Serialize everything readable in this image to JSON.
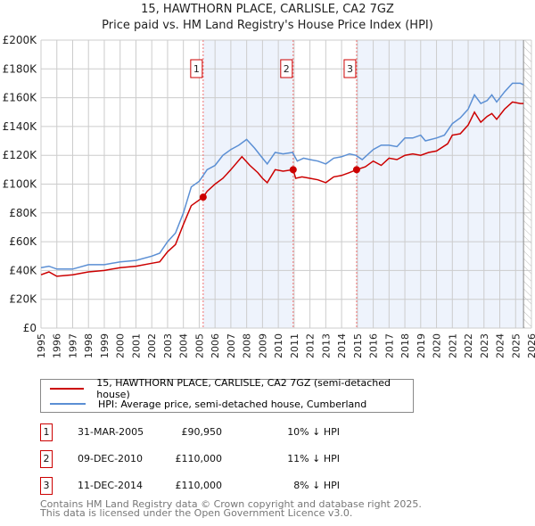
{
  "chart_data": {
    "type": "line",
    "title": "15, HAWTHORN PLACE, CARLISLE, CA2 7GZ",
    "subtitle": "Price paid vs. HM Land Registry's House Price Index (HPI)",
    "xlim": [
      1995,
      2026
    ],
    "ylim": [
      0,
      200000
    ],
    "yticks": [
      {
        "v": 0,
        "label": "£0"
      },
      {
        "v": 20000,
        "label": "£20K"
      },
      {
        "v": 40000,
        "label": "£40K"
      },
      {
        "v": 60000,
        "label": "£60K"
      },
      {
        "v": 80000,
        "label": "£80K"
      },
      {
        "v": 100000,
        "label": "£100K"
      },
      {
        "v": 120000,
        "label": "£120K"
      },
      {
        "v": 140000,
        "label": "£140K"
      },
      {
        "v": 160000,
        "label": "£160K"
      },
      {
        "v": 180000,
        "label": "£180K"
      },
      {
        "v": 200000,
        "label": "£200K"
      }
    ],
    "xticks": [
      "1995",
      "1996",
      "1997",
      "1998",
      "1999",
      "2000",
      "2001",
      "2002",
      "2003",
      "2004",
      "2005",
      "2006",
      "2007",
      "2008",
      "2009",
      "2010",
      "2011",
      "2012",
      "2013",
      "2014",
      "2015",
      "2016",
      "2017",
      "2018",
      "2019",
      "2020",
      "2021",
      "2022",
      "2023",
      "2024",
      "2025",
      "2026"
    ],
    "series": [
      {
        "name": "15, HAWTHORN PLACE, CARLISLE, CA2 7GZ (semi-detached house)",
        "color": "#cc0000",
        "x": [
          1995,
          1995.5,
          1996,
          1997,
          1998,
          1999,
          2000,
          2001,
          2002,
          2002.5,
          2003,
          2003.5,
          2004,
          2004.5,
          2005.25,
          2005.5,
          2006,
          2006.5,
          2007,
          2007.7,
          2008.2,
          2008.7,
          2009,
          2009.3,
          2009.8,
          2010.3,
          2010.94,
          2011.1,
          2011.5,
          2012,
          2012.5,
          2013,
          2013.5,
          2014,
          2014.5,
          2014.95,
          2015.5,
          2016,
          2016.5,
          2017,
          2017.5,
          2018,
          2018.5,
          2019,
          2019.5,
          2020,
          2020.7,
          2021,
          2021.5,
          2022,
          2022.4,
          2022.8,
          2023.2,
          2023.5,
          2023.8,
          2024.3,
          2024.8,
          2025.3,
          2025.5
        ],
        "y": [
          37000,
          39000,
          36000,
          37000,
          39000,
          40000,
          42000,
          43000,
          45000,
          46000,
          53000,
          58000,
          72000,
          85000,
          90950,
          95000,
          100000,
          104000,
          110000,
          119000,
          113000,
          108000,
          104000,
          101000,
          110000,
          109000,
          110000,
          104000,
          105000,
          104000,
          103000,
          101000,
          105000,
          106000,
          108000,
          110000,
          112000,
          116000,
          113000,
          118000,
          117000,
          120000,
          121000,
          120000,
          122000,
          123000,
          128000,
          134000,
          135000,
          141000,
          150000,
          143000,
          147000,
          149000,
          145000,
          152000,
          157000,
          156000,
          156000
        ]
      },
      {
        "name": "HPI: Average price, semi-detached house, Cumberland",
        "color": "#5b8fd4",
        "x": [
          1995,
          1995.5,
          1996,
          1997,
          1998,
          1999,
          2000,
          2001,
          2002,
          2002.5,
          2003,
          2003.5,
          2004,
          2004.5,
          2005,
          2005.5,
          2006,
          2006.5,
          2007,
          2007.5,
          2008,
          2008.5,
          2009,
          2009.3,
          2009.8,
          2010.3,
          2010.9,
          2011.2,
          2011.6,
          2012,
          2012.5,
          2013,
          2013.5,
          2014,
          2014.5,
          2014.9,
          2015.3,
          2016,
          2016.5,
          2017,
          2017.5,
          2018,
          2018.5,
          2019,
          2019.3,
          2020,
          2020.5,
          2021,
          2021.5,
          2022,
          2022.4,
          2022.8,
          2023.2,
          2023.5,
          2023.8,
          2024.3,
          2024.8,
          2025.3,
          2025.5
        ],
        "y": [
          42000,
          43000,
          41000,
          41000,
          44000,
          44000,
          46000,
          47000,
          50000,
          52000,
          60000,
          66000,
          80000,
          98000,
          102000,
          110000,
          113000,
          120000,
          124000,
          127000,
          131000,
          125000,
          118000,
          114000,
          122000,
          121000,
          122000,
          116000,
          118000,
          117000,
          116000,
          114000,
          118000,
          119000,
          121000,
          120000,
          117000,
          124000,
          127000,
          127000,
          126000,
          132000,
          132000,
          134000,
          130000,
          132000,
          134000,
          142000,
          146000,
          152000,
          162000,
          156000,
          158000,
          162000,
          157000,
          164000,
          170000,
          170000,
          169000
        ]
      }
    ],
    "sales": [
      {
        "n": "1",
        "x": 2005.25,
        "y": 90950
      },
      {
        "n": "2",
        "x": 2010.94,
        "y": 110000
      },
      {
        "n": "3",
        "x": 2014.95,
        "y": 110000
      }
    ],
    "hatch_from": 2025.5
  },
  "legend": [
    "15, HAWTHORN PLACE, CARLISLE, CA2 7GZ (semi-detached house)",
    "HPI: Average price, semi-detached house, Cumberland"
  ],
  "table": [
    {
      "n": "1",
      "date": "31-MAR-2005",
      "price": "£90,950",
      "hpi": "10% ↓ HPI"
    },
    {
      "n": "2",
      "date": "09-DEC-2010",
      "price": "£110,000",
      "hpi": "11% ↓ HPI"
    },
    {
      "n": "3",
      "date": "11-DEC-2014",
      "price": "£110,000",
      "hpi": "8% ↓ HPI"
    }
  ],
  "footer": [
    "Contains HM Land Registry data © Crown copyright and database right 2025.",
    "This data is licensed under the Open Government Licence v3.0."
  ]
}
